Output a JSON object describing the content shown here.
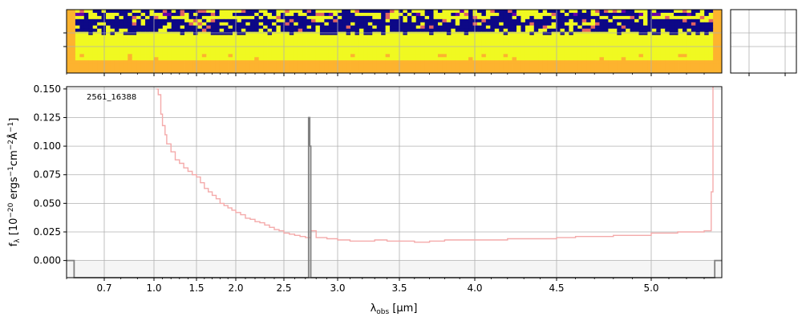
{
  "chart_data": [
    {
      "type": "heatmap",
      "panel": "2d-spectrum",
      "colormap": [
        "#0d0887",
        "#f0f921",
        "#fdb32f",
        "#e16462",
        "#6a00a8"
      ],
      "x_ticks": [
        "0.7",
        "1.0",
        "1.5",
        "2.0",
        "2.5",
        "3.0",
        "3.5",
        "4.0",
        "4.5",
        "5.0"
      ],
      "tick_labels_shown": false
    },
    {
      "type": "line",
      "panel": "1d-spectrum",
      "label": "2561_16388",
      "xlabel_main": "λ",
      "xlabel_sub": "obs",
      "xlabel_unit": " [μm]",
      "ylabel": "f_λ [10^-20 ergs^-1 cm^-2 Å^-1]",
      "ylabel_parts": {
        "f": "f",
        "lambda": "λ",
        "pre": " [10",
        "exp1": "−20",
        "mid1": " ergs",
        "exp2": "−1",
        "mid2": "cm",
        "exp3": "−2",
        "mid3": "Å",
        "exp4": "−1",
        "post": "]"
      },
      "x_ticks": [
        0.7,
        1.0,
        1.5,
        2.0,
        2.5,
        3.0,
        3.5,
        4.0,
        4.5,
        5.0
      ],
      "x_tick_labels": [
        "0.7",
        "1.0",
        "1.5",
        "2.0",
        "2.5",
        "3.0",
        "3.5",
        "4.0",
        "4.5",
        "5.0"
      ],
      "y_ticks": [
        0.0,
        0.025,
        0.05,
        0.075,
        0.1,
        0.125,
        0.15
      ],
      "y_tick_labels": [
        "0.000",
        "0.025",
        "0.050",
        "0.075",
        "0.100",
        "0.125",
        "0.150"
      ],
      "ylim": [
        -0.015,
        0.152
      ],
      "xlim_approx": [
        0.6,
        5.4
      ],
      "grid": true,
      "series": [
        {
          "color": "#f4aaaa",
          "style": "step",
          "x": [
            1.03,
            1.05,
            1.08,
            1.1,
            1.13,
            1.15,
            1.2,
            1.25,
            1.3,
            1.35,
            1.4,
            1.45,
            1.5,
            1.55,
            1.6,
            1.65,
            1.7,
            1.75,
            1.8,
            1.85,
            1.9,
            1.95,
            2.0,
            2.05,
            2.1,
            2.15,
            2.2,
            2.25,
            2.3,
            2.35,
            2.4,
            2.45,
            2.5,
            2.55,
            2.6,
            2.65,
            2.7,
            2.75,
            2.8,
            2.9,
            3.0,
            3.1,
            3.2,
            3.3,
            3.4,
            3.5,
            3.6,
            3.7,
            3.8,
            3.9,
            4.0,
            4.1,
            4.2,
            4.3,
            4.4,
            4.5,
            4.6,
            4.7,
            4.8,
            4.9,
            5.0,
            5.05,
            5.1,
            5.15,
            5.2,
            5.25,
            5.3,
            5.33,
            5.34,
            5.35
          ],
          "y": [
            0.15,
            0.145,
            0.128,
            0.118,
            0.11,
            0.102,
            0.095,
            0.088,
            0.085,
            0.081,
            0.078,
            0.075,
            0.073,
            0.068,
            0.063,
            0.06,
            0.057,
            0.054,
            0.05,
            0.048,
            0.046,
            0.044,
            0.042,
            0.04,
            0.037,
            0.036,
            0.034,
            0.033,
            0.031,
            0.029,
            0.027,
            0.026,
            0.024,
            0.023,
            0.022,
            0.021,
            0.02,
            0.026,
            0.02,
            0.019,
            0.018,
            0.017,
            0.017,
            0.018,
            0.017,
            0.017,
            0.016,
            0.017,
            0.018,
            0.018,
            0.018,
            0.018,
            0.019,
            0.019,
            0.019,
            0.02,
            0.021,
            0.021,
            0.022,
            0.022,
            0.024,
            0.024,
            0.024,
            0.025,
            0.025,
            0.025,
            0.026,
            0.026,
            0.06,
            0.152
          ]
        },
        {
          "color": "#808080",
          "style": "step",
          "x": [
            0.6,
            0.62,
            0.62,
            2.73,
            2.73,
            2.74,
            2.74,
            2.75,
            2.75,
            2.76,
            2.76,
            5.36,
            5.36,
            5.42
          ],
          "y": [
            0.0,
            0.0,
            -0.02,
            -0.02,
            0.125,
            0.125,
            0.1,
            0.1,
            -0.02,
            -0.02,
            -0.02,
            -0.02,
            0.0,
            0.0
          ]
        }
      ]
    }
  ]
}
